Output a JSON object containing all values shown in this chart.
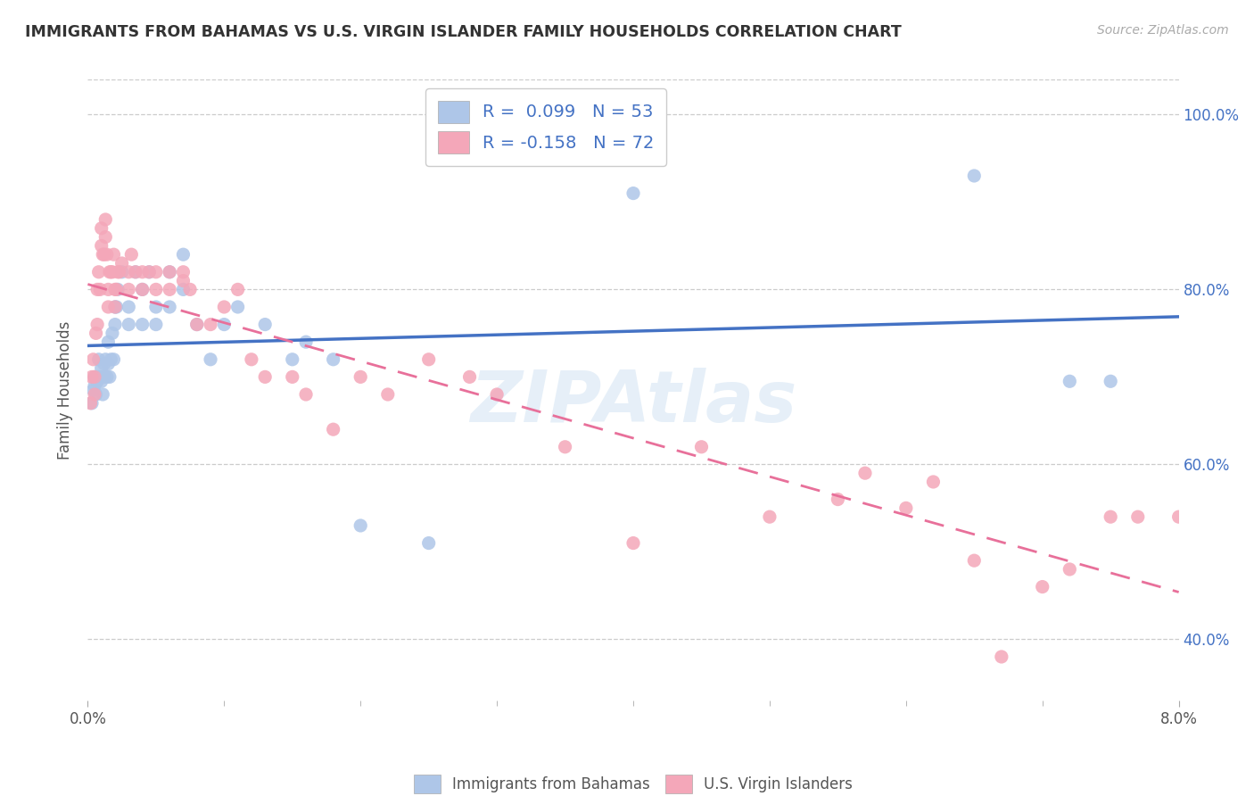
{
  "title": "IMMIGRANTS FROM BAHAMAS VS U.S. VIRGIN ISLANDER FAMILY HOUSEHOLDS CORRELATION CHART",
  "source": "Source: ZipAtlas.com",
  "ylabel": "Family Households",
  "blue_R": 0.099,
  "blue_N": 53,
  "pink_R": -0.158,
  "pink_N": 72,
  "blue_color": "#aec6e8",
  "pink_color": "#f4a7b9",
  "blue_line_color": "#4472c4",
  "pink_line_color": "#e8709a",
  "xlim": [
    0.0,
    0.08
  ],
  "ylim": [
    0.33,
    1.04
  ],
  "yticks": [
    0.4,
    0.6,
    0.8,
    1.0
  ],
  "xticks_major": [
    0.0,
    0.08
  ],
  "xticks_minor": [
    0.01,
    0.02,
    0.03,
    0.04,
    0.05,
    0.06,
    0.07
  ],
  "legend_top_label1": "R =  0.099   N = 53",
  "legend_top_label2": "R = -0.158   N = 72",
  "legend_bot_label1": "Immigrants from Bahamas",
  "legend_bot_label2": "U.S. Virgin Islanders",
  "blue_x": [
    0.0003,
    0.0004,
    0.0005,
    0.0005,
    0.0006,
    0.0007,
    0.0008,
    0.0008,
    0.0009,
    0.001,
    0.001,
    0.0011,
    0.0012,
    0.0012,
    0.0013,
    0.0014,
    0.0015,
    0.0015,
    0.0016,
    0.0017,
    0.0018,
    0.0019,
    0.002,
    0.002,
    0.0021,
    0.0022,
    0.0025,
    0.003,
    0.003,
    0.0035,
    0.004,
    0.004,
    0.0045,
    0.005,
    0.005,
    0.006,
    0.006,
    0.007,
    0.007,
    0.008,
    0.009,
    0.01,
    0.011,
    0.013,
    0.015,
    0.016,
    0.018,
    0.02,
    0.025,
    0.04,
    0.065,
    0.072,
    0.075
  ],
  "blue_y": [
    0.67,
    0.685,
    0.69,
    0.7,
    0.68,
    0.695,
    0.7,
    0.72,
    0.7,
    0.695,
    0.71,
    0.68,
    0.715,
    0.7,
    0.72,
    0.7,
    0.715,
    0.74,
    0.7,
    0.72,
    0.75,
    0.72,
    0.76,
    0.78,
    0.78,
    0.8,
    0.82,
    0.78,
    0.76,
    0.82,
    0.76,
    0.8,
    0.82,
    0.76,
    0.78,
    0.78,
    0.82,
    0.8,
    0.84,
    0.76,
    0.72,
    0.76,
    0.78,
    0.76,
    0.72,
    0.74,
    0.72,
    0.53,
    0.51,
    0.91,
    0.93,
    0.695,
    0.695
  ],
  "pink_x": [
    0.0002,
    0.0003,
    0.0004,
    0.0005,
    0.0005,
    0.0006,
    0.0007,
    0.0007,
    0.0008,
    0.0009,
    0.001,
    0.001,
    0.0011,
    0.0012,
    0.0013,
    0.0013,
    0.0014,
    0.0015,
    0.0015,
    0.0016,
    0.0017,
    0.0018,
    0.0019,
    0.002,
    0.002,
    0.0021,
    0.0022,
    0.0023,
    0.0025,
    0.003,
    0.003,
    0.0032,
    0.0035,
    0.004,
    0.004,
    0.0045,
    0.005,
    0.005,
    0.006,
    0.006,
    0.007,
    0.007,
    0.0075,
    0.008,
    0.009,
    0.01,
    0.011,
    0.012,
    0.013,
    0.015,
    0.016,
    0.018,
    0.02,
    0.022,
    0.025,
    0.028,
    0.03,
    0.035,
    0.04,
    0.045,
    0.05,
    0.055,
    0.057,
    0.06,
    0.062,
    0.065,
    0.067,
    0.07,
    0.072,
    0.075,
    0.077,
    0.08
  ],
  "pink_y": [
    0.67,
    0.7,
    0.72,
    0.7,
    0.68,
    0.75,
    0.76,
    0.8,
    0.82,
    0.8,
    0.85,
    0.87,
    0.84,
    0.84,
    0.86,
    0.88,
    0.84,
    0.78,
    0.8,
    0.82,
    0.82,
    0.82,
    0.84,
    0.78,
    0.8,
    0.8,
    0.82,
    0.82,
    0.83,
    0.8,
    0.82,
    0.84,
    0.82,
    0.8,
    0.82,
    0.82,
    0.8,
    0.82,
    0.8,
    0.82,
    0.81,
    0.82,
    0.8,
    0.76,
    0.76,
    0.78,
    0.8,
    0.72,
    0.7,
    0.7,
    0.68,
    0.64,
    0.7,
    0.68,
    0.72,
    0.7,
    0.68,
    0.62,
    0.51,
    0.62,
    0.54,
    0.56,
    0.59,
    0.55,
    0.58,
    0.49,
    0.38,
    0.46,
    0.48,
    0.54,
    0.54,
    0.54
  ]
}
